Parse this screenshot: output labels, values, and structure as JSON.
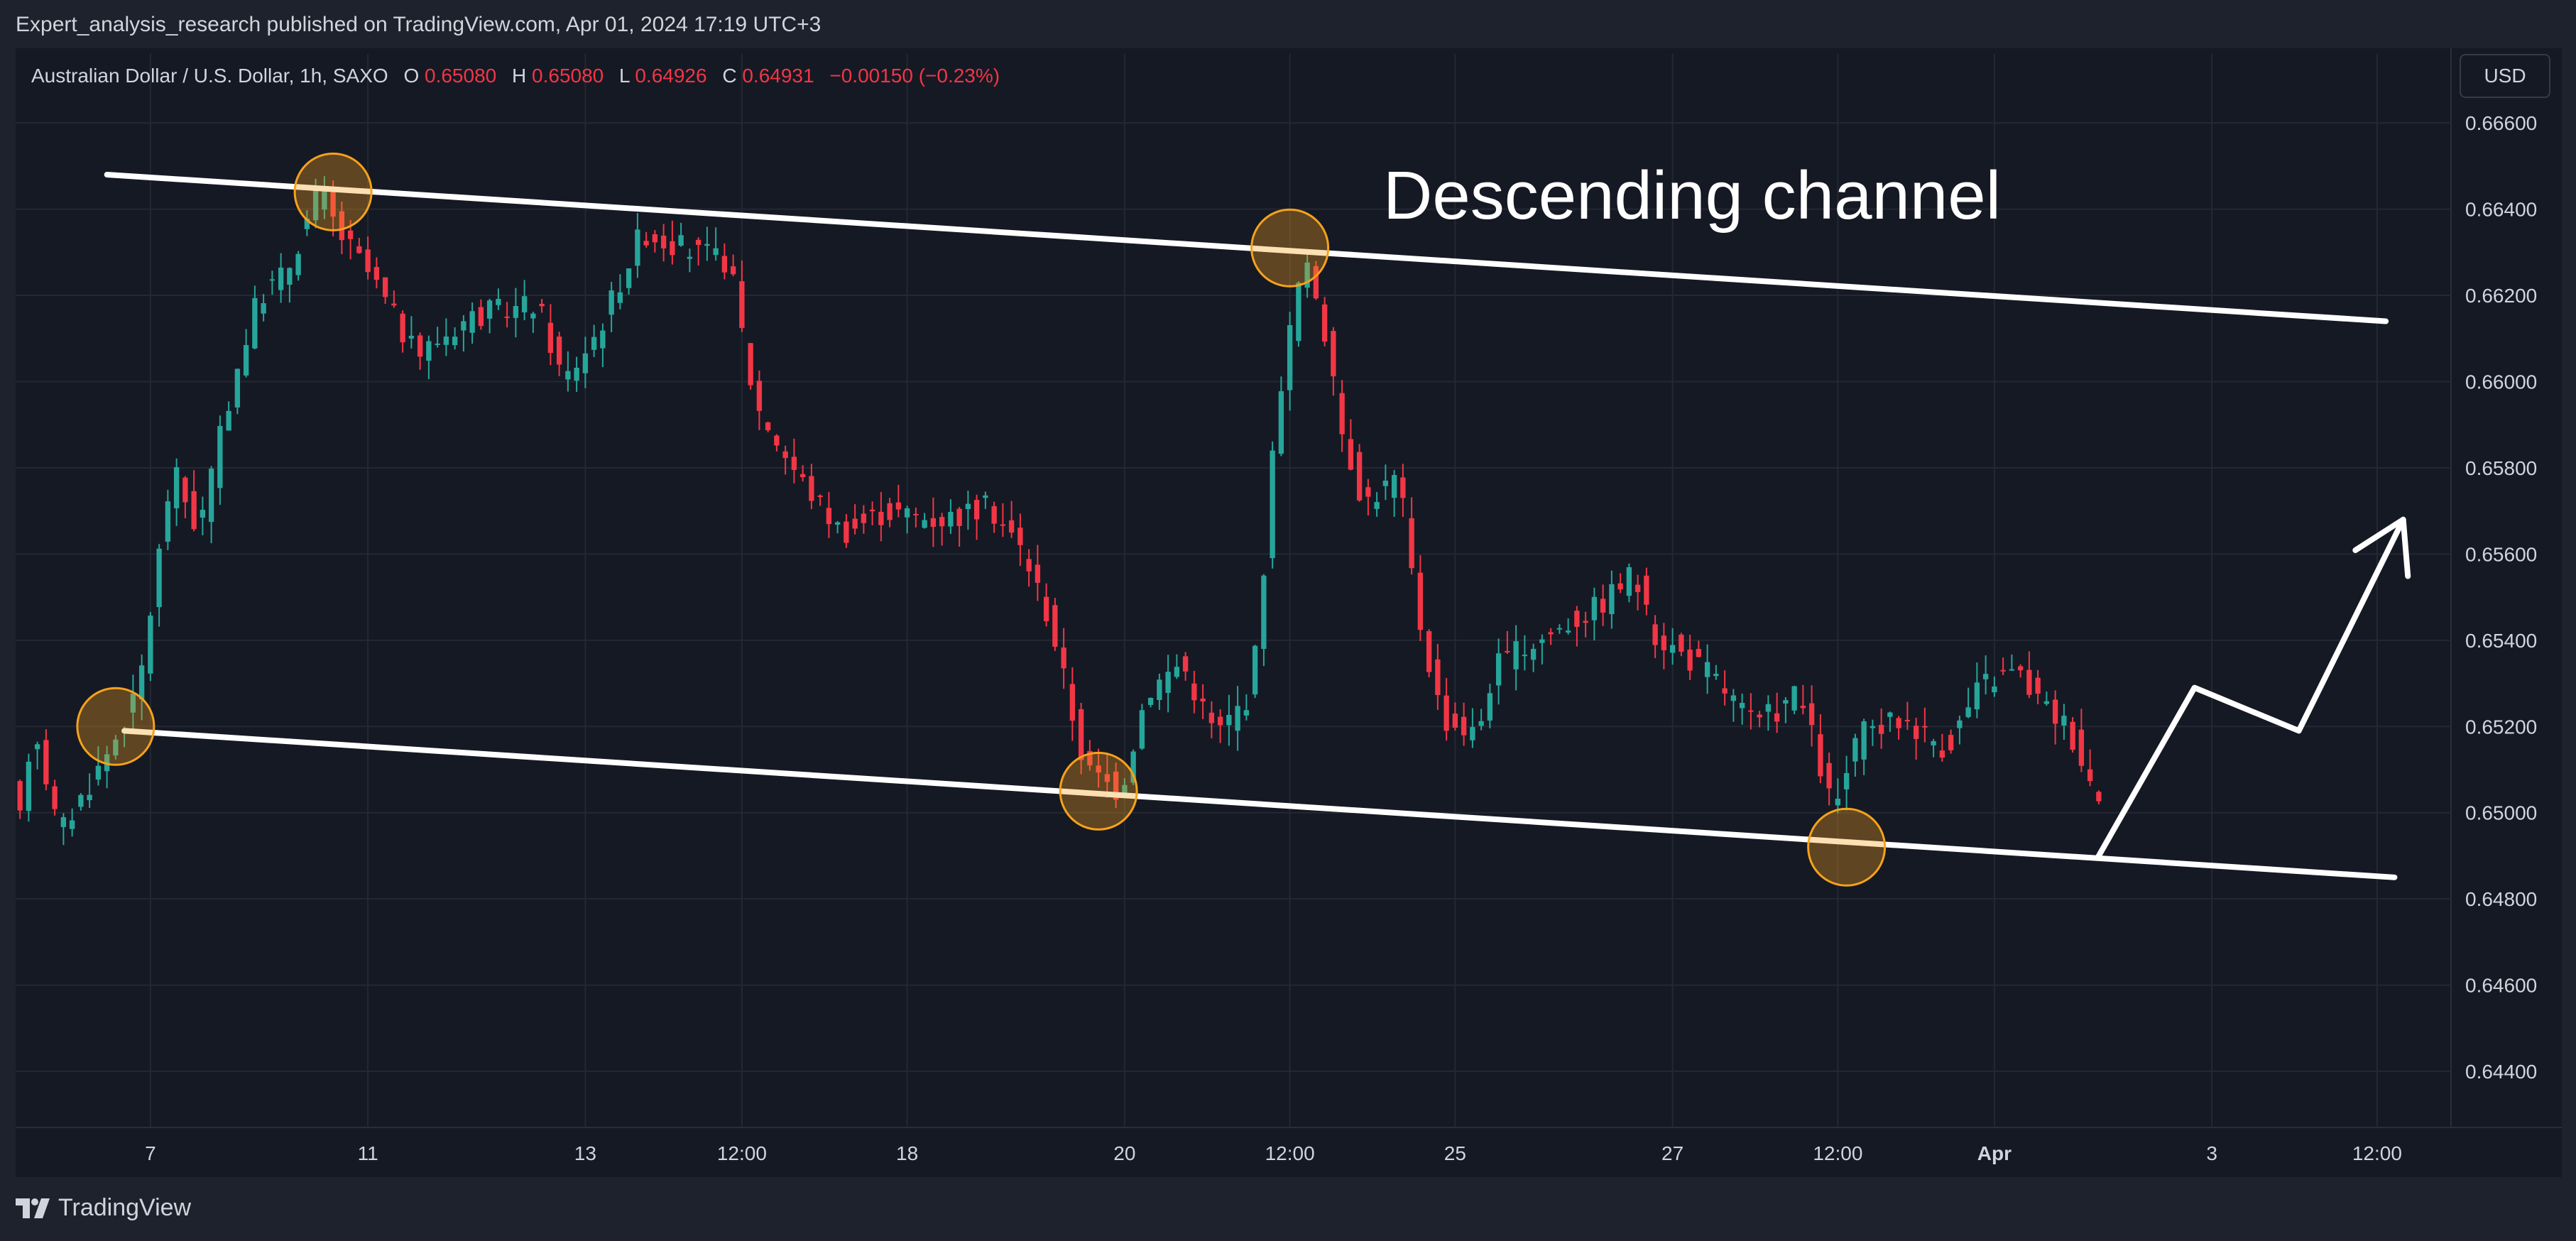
{
  "publisher_text": "Expert_analysis_research published on TradingView.com, Apr 01, 2024 17:19 UTC+3",
  "brand": "TradingView",
  "currency": "USD",
  "colors": {
    "background": "#151924",
    "frame": "#1e222d",
    "grid": "#242832",
    "text": "#d1d4dc",
    "up_candle": "#26a69a",
    "down_candle": "#f23645",
    "annotation": "#ffffff",
    "marker": "#f7a21b"
  },
  "chart_data": {
    "type": "candlestick",
    "symbol_line": {
      "name": "Australian Dollar / U.S. Dollar, 1h, SAXO",
      "open_label": "O",
      "open": "0.65080",
      "high_label": "H",
      "high": "0.65080",
      "low_label": "L",
      "low": "0.64926",
      "close_label": "C",
      "close": "0.64931",
      "change": "−0.00150 (−0.23%)"
    },
    "annotation_title": "Descending channel",
    "y_ticks": [
      "0.66600",
      "0.66400",
      "0.66200",
      "0.66000",
      "0.65800",
      "0.65600",
      "0.65400",
      "0.65200",
      "0.65000",
      "0.64800",
      "0.64600",
      "0.64400"
    ],
    "y_tick_values": [
      0.666,
      0.664,
      0.662,
      0.66,
      0.658,
      0.656,
      0.654,
      0.652,
      0.65,
      0.648,
      0.646,
      0.644
    ],
    "ylim": [
      0.6427,
      0.6676
    ],
    "x_ticks": [
      "7",
      "11",
      "13",
      "12:00",
      "18",
      "20",
      "12:00",
      "25",
      "27",
      "12:00",
      "Apr",
      "3",
      "12:00"
    ],
    "x_tick_index": [
      15,
      40,
      65,
      83,
      102,
      127,
      146,
      165,
      190,
      209,
      227,
      252,
      271
    ],
    "bar_count": 280,
    "price_path": [
      [
        0,
        0.649
      ],
      [
        2,
        0.6522
      ],
      [
        5,
        0.6495
      ],
      [
        10,
        0.6512
      ],
      [
        14,
        0.6527
      ],
      [
        18,
        0.658
      ],
      [
        21,
        0.6565
      ],
      [
        25,
        0.66
      ],
      [
        28,
        0.662
      ],
      [
        31,
        0.6625
      ],
      [
        35,
        0.6645
      ],
      [
        37,
        0.6635
      ],
      [
        41,
        0.6624
      ],
      [
        46,
        0.6606
      ],
      [
        52,
        0.6615
      ],
      [
        60,
        0.6618
      ],
      [
        63,
        0.66
      ],
      [
        67,
        0.6612
      ],
      [
        72,
        0.6635
      ],
      [
        78,
        0.663
      ],
      [
        82,
        0.6628
      ],
      [
        85,
        0.6595
      ],
      [
        90,
        0.6578
      ],
      [
        95,
        0.6565
      ],
      [
        100,
        0.657
      ],
      [
        106,
        0.6568
      ],
      [
        112,
        0.6571
      ],
      [
        116,
        0.656
      ],
      [
        119,
        0.6544
      ],
      [
        123,
        0.651
      ],
      [
        127,
        0.6505
      ],
      [
        130,
        0.6528
      ],
      [
        134,
        0.6535
      ],
      [
        138,
        0.6518
      ],
      [
        142,
        0.6528
      ],
      [
        143,
        0.6545
      ],
      [
        145,
        0.6595
      ],
      [
        148,
        0.6628
      ],
      [
        150,
        0.6618
      ],
      [
        152,
        0.6592
      ],
      [
        155,
        0.6572
      ],
      [
        159,
        0.6578
      ],
      [
        161,
        0.6548
      ],
      [
        164,
        0.6522
      ],
      [
        168,
        0.6518
      ],
      [
        170,
        0.6534
      ],
      [
        175,
        0.654
      ],
      [
        182,
        0.6548
      ],
      [
        186,
        0.6556
      ],
      [
        188,
        0.6542
      ],
      [
        195,
        0.6532
      ],
      [
        200,
        0.652
      ],
      [
        205,
        0.6528
      ],
      [
        209,
        0.65
      ],
      [
        212,
        0.6518
      ],
      [
        217,
        0.6522
      ],
      [
        222,
        0.6515
      ],
      [
        226,
        0.653
      ],
      [
        230,
        0.6533
      ],
      [
        233,
        0.6525
      ],
      [
        236,
        0.652
      ],
      [
        239,
        0.6505
      ]
    ],
    "channel": {
      "upper": {
        "start": [
          10,
          0.6648
        ],
        "end": [
          272,
          0.6614
        ]
      },
      "lower": {
        "start": [
          12,
          0.6519
        ],
        "end": [
          273,
          0.6485
        ]
      }
    },
    "touch_points": [
      [
        36,
        0.6644
      ],
      [
        11,
        0.652
      ],
      [
        124,
        0.6505
      ],
      [
        146,
        0.6631
      ],
      [
        210,
        0.6492
      ]
    ],
    "projection": [
      [
        239,
        0.649
      ],
      [
        250,
        0.6529
      ],
      [
        262,
        0.6519
      ],
      [
        274,
        0.6568
      ]
    ]
  }
}
